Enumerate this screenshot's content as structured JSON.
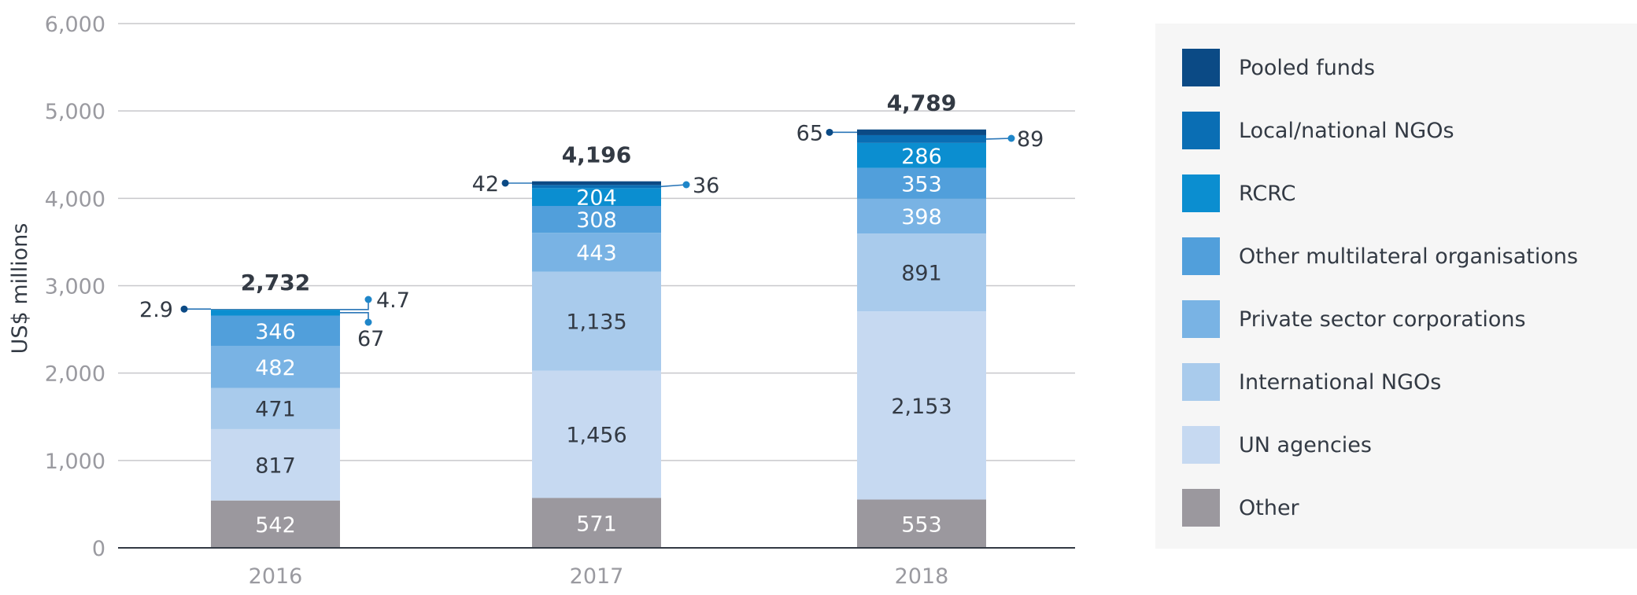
{
  "chart_data": {
    "type": "bar",
    "stacked": true,
    "categories": [
      "2016",
      "2017",
      "2018"
    ],
    "ylabel": "US$ millions",
    "ylim": [
      0,
      6000
    ],
    "yticks": [
      "0",
      "1,000",
      "2,000",
      "3,000",
      "4,000",
      "5,000",
      "6,000"
    ],
    "grid": true,
    "legend_position": "right",
    "series": [
      {
        "name": "Other",
        "color": "#9b989e",
        "text_color": "#ffffff",
        "values": [
          542,
          571,
          553
        ],
        "labels": [
          "542",
          "571",
          "553"
        ]
      },
      {
        "name": "UN agencies",
        "color": "#c6d9f1",
        "text_color": "#333a44",
        "values": [
          817,
          1456,
          2153
        ],
        "labels": [
          "817",
          "1,456",
          "2,153"
        ]
      },
      {
        "name": "International NGOs",
        "color": "#a9cbec",
        "text_color": "#333a44",
        "values": [
          471,
          1135,
          891
        ],
        "labels": [
          "471",
          "1,135",
          "891"
        ]
      },
      {
        "name": "Private sector corporations",
        "color": "#79b3e4",
        "text_color": "#ffffff",
        "values": [
          482,
          443,
          398
        ],
        "labels": [
          "482",
          "443",
          "398"
        ]
      },
      {
        "name": "Other multilateral organisations",
        "color": "#519fdb",
        "text_color": "#ffffff",
        "values": [
          346,
          308,
          353
        ],
        "labels": [
          "346",
          "308",
          "353"
        ]
      },
      {
        "name": "RCRC",
        "color": "#0b8ed0",
        "text_color": "#ffffff",
        "values": [
          67,
          204,
          286
        ],
        "labels": [
          "67",
          "204",
          "286"
        ]
      },
      {
        "name": "Local/national NGOs",
        "color": "#0a6eb4",
        "text_color": "#ffffff",
        "values": [
          4.7,
          36,
          89
        ],
        "labels": [
          "4.7",
          "36",
          "89"
        ]
      },
      {
        "name": "Pooled funds",
        "color": "#0b4a85",
        "text_color": "#ffffff",
        "values": [
          2.9,
          42,
          65
        ],
        "labels": [
          "2.9",
          "42",
          "65"
        ]
      }
    ],
    "totals": [
      "2,732",
      "4,196",
      "4,789"
    ]
  },
  "legend": [
    {
      "label": "Pooled funds",
      "color": "#0b4a85"
    },
    {
      "label": "Local/national NGOs",
      "color": "#0a6eb4"
    },
    {
      "label": "RCRC",
      "color": "#0b8ed0"
    },
    {
      "label": "Other multilateral organisations",
      "color": "#519fdb"
    },
    {
      "label": "Private sector corporations",
      "color": "#79b3e4"
    },
    {
      "label": "International NGOs",
      "color": "#a9cbec"
    },
    {
      "label": "UN agencies",
      "color": "#c6d9f1"
    },
    {
      "label": "Other",
      "color": "#9b989e"
    }
  ]
}
